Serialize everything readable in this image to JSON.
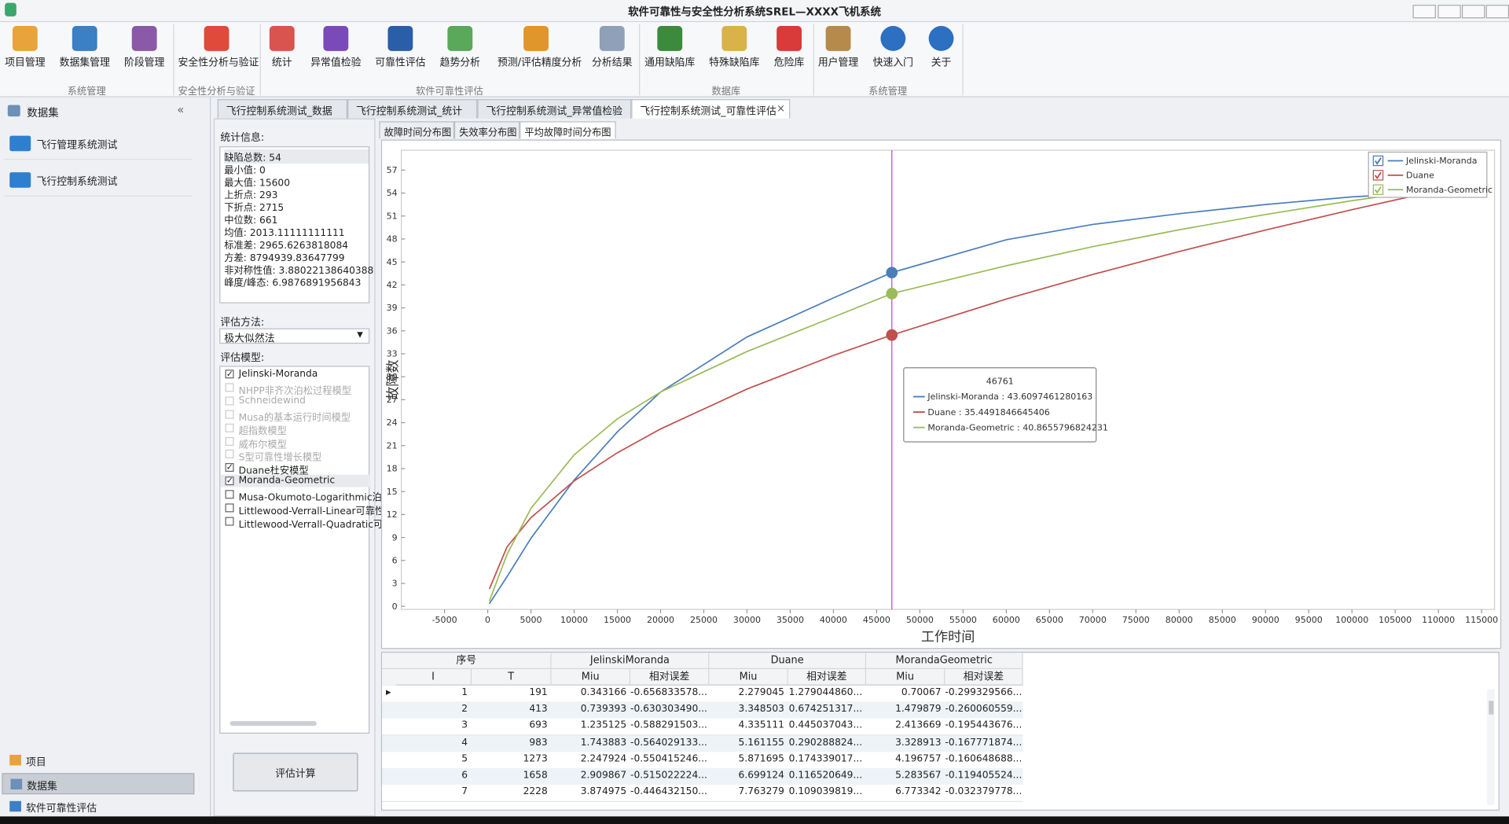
{
  "window": {
    "title": "软件可靠性与安全性分析系统SREL—XXXX飞机系统"
  },
  "ribbon": {
    "groups": [
      {
        "label": "系统管理",
        "buttons": [
          "项目管理",
          "数据集管理",
          "阶段管理"
        ]
      },
      {
        "label": "安全性分析与验证",
        "buttons": [
          "安全性分析与验证"
        ]
      },
      {
        "label": "软件可靠性评估",
        "buttons": [
          "统计",
          "异常值检验",
          "可靠性评估",
          "趋势分析",
          "预测/评估精度分析",
          "分析结果"
        ]
      },
      {
        "label": "数据库",
        "buttons": [
          "通用缺陷库",
          "特殊缺陷库",
          "危险库"
        ]
      },
      {
        "label": "系统管理",
        "buttons": [
          "用户管理",
          "快速入门",
          "关于"
        ]
      }
    ]
  },
  "sidebar": {
    "title": "数据集",
    "items": [
      "飞行管理系统测试",
      "飞行控制系统测试"
    ],
    "nav": [
      "项目",
      "数据集",
      "软件可靠性评估"
    ],
    "nav_active": 1
  },
  "doc_tabs": {
    "items": [
      "飞行控制系统测试_数据",
      "飞行控制系统测试_统计",
      "飞行控制系统测试_异常值检验",
      "飞行控制系统测试_可靠性评估"
    ],
    "active": 3
  },
  "stats": {
    "label": "统计信息:",
    "lines": [
      "缺陷总数: 54",
      "最小值: 0",
      "最大值: 15600",
      "上折点: 293",
      "下折点: 2715",
      "中位数: 661",
      "均值: 2013.11111111111",
      "标准差: 2965.6263818084",
      "方差: 8794939.83647799",
      "非对称性值: 3.88022138640388",
      "峰度/峰态: 6.9876891956843"
    ]
  },
  "method": {
    "label": "评估方法:",
    "value": "极大似然法"
  },
  "models": {
    "label": "评估模型:",
    "items": [
      {
        "name": "Jelinski-Moranda",
        "checked": true,
        "enabled": true
      },
      {
        "name": "NHPP非齐次泊松过程模型",
        "checked": false,
        "enabled": false
      },
      {
        "name": "Schneidewind",
        "checked": false,
        "enabled": false
      },
      {
        "name": "Musa的基本运行时间模型",
        "checked": false,
        "enabled": false
      },
      {
        "name": "超指数模型",
        "checked": false,
        "enabled": false
      },
      {
        "name": "威布尔模型",
        "checked": false,
        "enabled": false
      },
      {
        "name": "S型可靠性增长模型",
        "checked": false,
        "enabled": false
      },
      {
        "name": "Duane杜安模型",
        "checked": true,
        "enabled": true
      },
      {
        "name": "Moranda-Geometric",
        "checked": true,
        "enabled": true
      },
      {
        "name": "Musa-Okumoto-Logarithmic泊",
        "checked": false,
        "enabled": true
      },
      {
        "name": "Littlewood-Verrall-Linear可靠性",
        "checked": false,
        "enabled": true
      },
      {
        "name": "Littlewood-Verrall-Quadratic可",
        "checked": false,
        "enabled": true
      }
    ]
  },
  "button": "评估计算",
  "chart_tabs": {
    "items": [
      "故障时间分布图",
      "失效率分布图",
      "平均故障时间分布图"
    ],
    "active": 2
  },
  "chart_data": {
    "type": "line",
    "x_label": "工作时间",
    "y_label": "故障数",
    "x": [
      191,
      2228,
      5000,
      10000,
      15000,
      20000,
      30000,
      40000,
      46761,
      60000,
      70000,
      80000,
      90000,
      100000,
      110000,
      115000
    ],
    "series": [
      {
        "name": "Jelinski-Moranda",
        "color": "#4a7ebb",
        "values": [
          0.343166,
          3.874975,
          8.9,
          16.5,
          22.8,
          28.0,
          35.2,
          40.3,
          43.6097461280163,
          47.9,
          49.9,
          51.3,
          52.5,
          53.5,
          54.1,
          54.4
        ]
      },
      {
        "name": "Duane",
        "color": "#c0504d",
        "values": [
          2.279045,
          7.763279,
          11.59,
          16.39,
          20.07,
          23.18,
          28.39,
          32.78,
          35.4491846645406,
          40.15,
          43.36,
          46.36,
          49.17,
          51.83,
          54.36,
          55.58
        ]
      },
      {
        "name": "Moranda-Geometric",
        "color": "#9bbb59",
        "values": [
          0.70067,
          6.773342,
          12.8,
          19.8,
          24.5,
          28.0,
          33.3,
          37.8,
          40.8655796824231,
          44.5,
          47.0,
          49.2,
          51.2,
          53.0,
          54.6,
          55.3
        ]
      }
    ],
    "xlim": [
      -10000,
      116500
    ],
    "ylim": [
      -0.4,
      59.6
    ],
    "xticks": [
      -5000,
      0,
      5000,
      10000,
      15000,
      20000,
      25000,
      30000,
      35000,
      40000,
      45000,
      50000,
      55000,
      60000,
      65000,
      70000,
      75000,
      80000,
      85000,
      90000,
      95000,
      100000,
      105000,
      110000,
      115000
    ],
    "yticks": [
      0,
      3,
      6,
      9,
      12,
      15,
      18,
      21,
      24,
      27,
      30,
      33,
      36,
      39,
      42,
      45,
      48,
      51,
      54,
      57
    ],
    "legend": "top-right",
    "cursor_index": 8,
    "cursor_color": "#d63ad6",
    "tooltip_lines": [
      "Jelinski-Moranda : 43.6097461280163",
      "Duane : 35.4491846645406",
      "Moranda-Geometric : 40.8655796824231"
    ]
  },
  "table": {
    "group_headers": [
      "序号",
      "JelinskiMoranda",
      "Duane",
      "MorandaGeometric"
    ],
    "headers": [
      "I",
      "T",
      "Miu",
      "相对误差",
      "Miu",
      "相对误差",
      "Miu",
      "相对误差"
    ],
    "rows": [
      [
        1,
        191,
        0.343166,
        "-0.656833578...",
        2.279045,
        "1.279044860...",
        0.70067,
        "-0.299329566..."
      ],
      [
        2,
        413,
        0.739393,
        "-0.630303490...",
        3.348503,
        "0.674251317...",
        1.479879,
        "-0.260060559..."
      ],
      [
        3,
        693,
        1.235125,
        "-0.588291503...",
        4.335111,
        "0.445037043...",
        2.413669,
        "-0.195443676..."
      ],
      [
        4,
        983,
        1.743883,
        "-0.564029133...",
        5.161155,
        "0.290288824...",
        3.328913,
        "-0.167771874..."
      ],
      [
        5,
        1273,
        2.247924,
        "-0.550415246...",
        5.871695,
        "0.174339017...",
        4.196757,
        "-0.160648688..."
      ],
      [
        6,
        1658,
        2.909867,
        "-0.515022224...",
        6.699124,
        "0.116520649...",
        5.283567,
        "-0.119405524..."
      ],
      [
        7,
        2228,
        3.874975,
        "-0.446432150...",
        7.763279,
        "0.109039819...",
        6.773342,
        "-0.032379778..."
      ]
    ]
  }
}
